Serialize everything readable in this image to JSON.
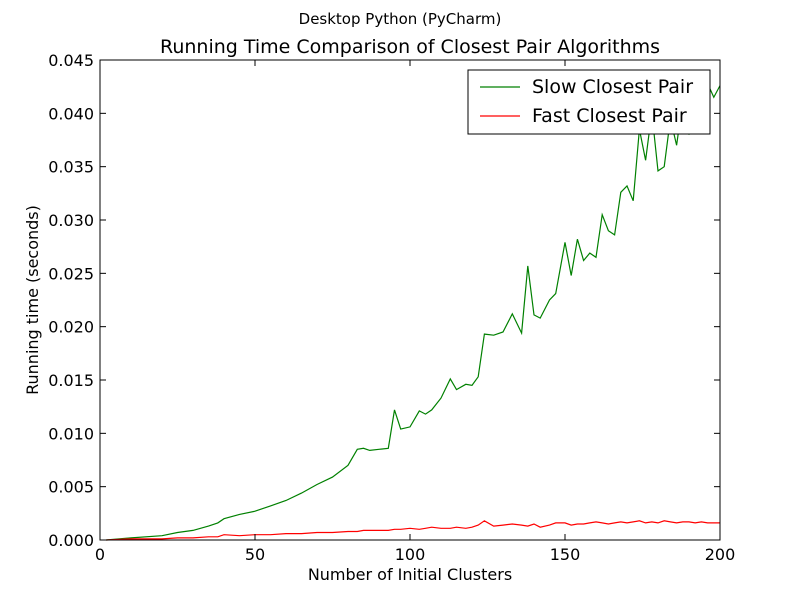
{
  "figure": {
    "suptitle": "Desktop Python (PyCharm)"
  },
  "chart_data": {
    "type": "line",
    "title": "Running Time Comparison of Closest Pair Algorithms",
    "xlabel": "Number of Initial Clusters",
    "ylabel": "Running time (seconds)",
    "xlim": [
      0,
      200
    ],
    "ylim": [
      0,
      0.045
    ],
    "xticks": [
      "0",
      "50",
      "100",
      "150",
      "200"
    ],
    "yticks": [
      "0.000",
      "0.005",
      "0.010",
      "0.015",
      "0.020",
      "0.025",
      "0.030",
      "0.035",
      "0.040",
      "0.045"
    ],
    "grid": false,
    "legend_position": "top-right",
    "x": [
      2,
      10,
      20,
      25,
      30,
      35,
      38,
      40,
      45,
      50,
      55,
      60,
      65,
      70,
      75,
      80,
      83,
      85,
      87,
      90,
      93,
      95,
      97,
      100,
      103,
      105,
      107,
      110,
      113,
      115,
      118,
      120,
      122,
      124,
      127,
      130,
      133,
      136,
      138,
      140,
      142,
      145,
      147,
      150,
      152,
      154,
      156,
      158,
      160,
      162,
      164,
      166,
      168,
      170,
      172,
      174,
      176,
      178,
      180,
      182,
      184,
      186,
      188,
      190,
      192,
      194,
      196,
      198,
      200
    ],
    "series": [
      {
        "name": "Slow Closest Pair",
        "color": "#008000",
        "values": [
          0.0,
          0.0002,
          0.0004,
          0.0007,
          0.0009,
          0.0013,
          0.0016,
          0.002,
          0.0024,
          0.0027,
          0.0032,
          0.0037,
          0.0044,
          0.0052,
          0.0059,
          0.007,
          0.0085,
          0.0086,
          0.0084,
          0.0085,
          0.0086,
          0.0122,
          0.0104,
          0.0106,
          0.0121,
          0.0118,
          0.0122,
          0.0133,
          0.0151,
          0.0141,
          0.0146,
          0.0145,
          0.0153,
          0.0193,
          0.0192,
          0.0195,
          0.0212,
          0.0194,
          0.0257,
          0.0211,
          0.0208,
          0.0225,
          0.0231,
          0.0279,
          0.0248,
          0.0282,
          0.0262,
          0.0269,
          0.0265,
          0.0305,
          0.029,
          0.0286,
          0.0326,
          0.0332,
          0.0318,
          0.0385,
          0.0356,
          0.0401,
          0.0346,
          0.035,
          0.0395,
          0.037,
          0.0412,
          0.038,
          0.0435,
          0.042,
          0.0428,
          0.0415,
          0.0426
        ]
      },
      {
        "name": "Fast Closest Pair",
        "color": "#ff0000",
        "values": [
          0.0,
          0.0001,
          0.0001,
          0.0002,
          0.0002,
          0.0003,
          0.0003,
          0.0005,
          0.0004,
          0.0005,
          0.0005,
          0.0006,
          0.0006,
          0.0007,
          0.0007,
          0.0008,
          0.0008,
          0.0009,
          0.0009,
          0.0009,
          0.0009,
          0.001,
          0.001,
          0.0011,
          0.001,
          0.0011,
          0.0012,
          0.0011,
          0.0011,
          0.0012,
          0.0011,
          0.0012,
          0.0014,
          0.0018,
          0.0013,
          0.0014,
          0.0015,
          0.0014,
          0.0013,
          0.0015,
          0.0012,
          0.0014,
          0.0016,
          0.0016,
          0.0014,
          0.0015,
          0.0015,
          0.0016,
          0.0017,
          0.0016,
          0.0015,
          0.0016,
          0.0017,
          0.0016,
          0.0017,
          0.0018,
          0.0016,
          0.0017,
          0.0016,
          0.0018,
          0.0017,
          0.0016,
          0.0017,
          0.0017,
          0.0016,
          0.0017,
          0.0016,
          0.0016,
          0.0016
        ]
      }
    ]
  }
}
